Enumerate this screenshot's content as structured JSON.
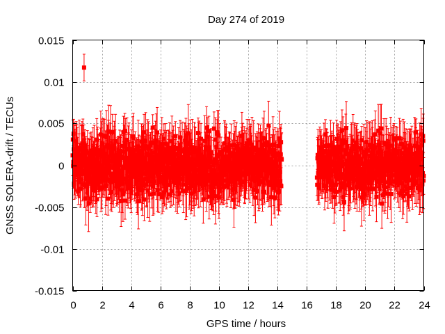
{
  "chart_data": {
    "type": "scatter",
    "title": "Day 274 of 2019",
    "xlabel": "GPS time / hours",
    "ylabel": "GNSS SOLERA-drift / TECUs",
    "xlim": [
      0,
      24
    ],
    "ylim": [
      -0.015,
      0.015
    ],
    "xticks": [
      0,
      2,
      4,
      6,
      8,
      10,
      12,
      14,
      16,
      18,
      20,
      22,
      24
    ],
    "yticks": [
      -0.015,
      -0.01,
      -0.005,
      0,
      0.005,
      0.01,
      0.015
    ],
    "ytick_labels": [
      "-0.015",
      "-0.01",
      "-0.005",
      "0",
      "0.005",
      "0.01",
      "0.015"
    ],
    "grid": true,
    "series_color": "#ff0000",
    "marker": "square",
    "error_bars": true,
    "data_segments": [
      {
        "x_start": 0.0,
        "x_end": 14.3,
        "mean": 0.0,
        "spread": 0.0045,
        "typical_error": 0.0025
      },
      {
        "x_start": 16.7,
        "x_end": 24.0,
        "mean": 0.0,
        "spread": 0.0045,
        "typical_error": 0.0025
      }
    ],
    "notable_points": [
      {
        "x": 0.78,
        "y": 0.0117,
        "error": 0.0016
      }
    ]
  }
}
